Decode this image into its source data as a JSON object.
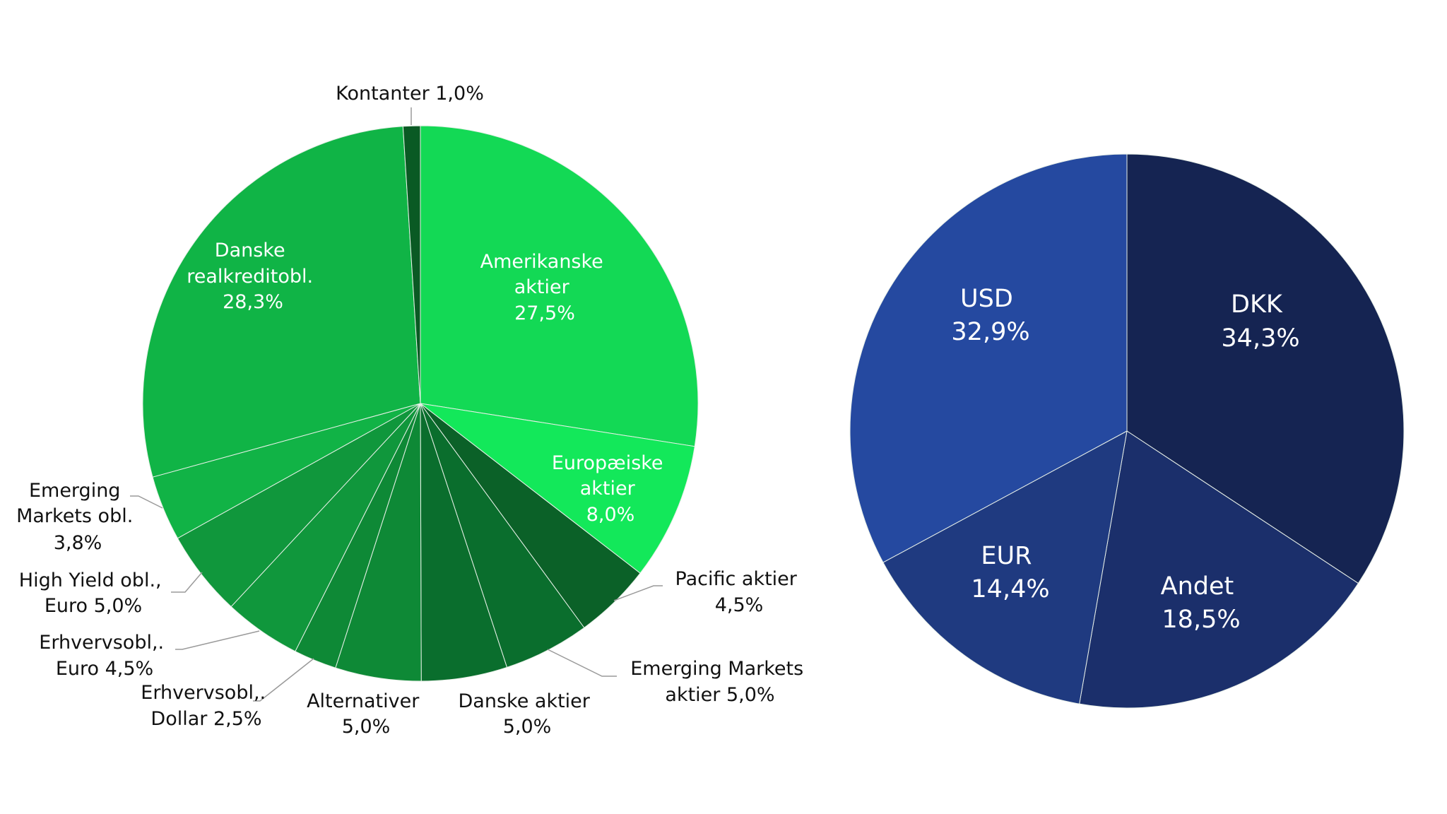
{
  "chart_data": [
    {
      "type": "pie",
      "title": "",
      "slices": [
        {
          "label": "Amerikanske aktier",
          "lines": [
            "Amerikanske",
            "aktier",
            "27,5%"
          ],
          "value": 27.5,
          "color": "#13d955"
        },
        {
          "label": "Europæiske aktier",
          "lines": [
            "Europæiske",
            "aktier",
            "8,0%"
          ],
          "value": 8.0,
          "color": "#13e85a"
        },
        {
          "label": "Pacific aktier",
          "lines": [
            "Pacific aktier",
            "4,5%"
          ],
          "value": 4.5,
          "color": "#0b6128"
        },
        {
          "label": "Emerging Markets aktier",
          "lines": [
            "Emerging Markets",
            "aktier 5,0%"
          ],
          "value": 5.0,
          "color": "#0a6e2d"
        },
        {
          "label": "Danske aktier",
          "lines": [
            "Danske aktier",
            "5,0%"
          ],
          "value": 5.0,
          "color": "#0a6e2d"
        },
        {
          "label": "Alternativer",
          "lines": [
            "Alternativer",
            "5,0%"
          ],
          "value": 5.0,
          "color": "#0e8936"
        },
        {
          "label": "Erhvervsobl,. Dollar",
          "lines": [
            "Erhvervsobl,.",
            "Dollar 2,5%"
          ],
          "value": 2.5,
          "color": "#0e8936"
        },
        {
          "label": "Erhvervsobl,. Euro",
          "lines": [
            "Erhvervsobl,.",
            "Euro 4,5%"
          ],
          "value": 4.5,
          "color": "#10973c"
        },
        {
          "label": "High Yield obl., Euro",
          "lines": [
            "High Yield obl.,",
            "Euro 5,0%"
          ],
          "value": 5.0,
          "color": "#10973c"
        },
        {
          "label": "Emerging Markets obl.",
          "lines": [
            "Emerging",
            "Markets obl.",
            "3,8%"
          ],
          "value": 3.8,
          "color": "#11b346"
        },
        {
          "label": "Danske realkreditobl.",
          "lines": [
            "Danske",
            "realkreditobl.",
            "28,3%"
          ],
          "value": 28.3,
          "color": "#10b446"
        },
        {
          "label": "Kontanter",
          "lines": [
            "Kontanter 1,0%"
          ],
          "value": 1.0,
          "color": "#0a5a24"
        }
      ]
    },
    {
      "type": "pie",
      "title": "",
      "slices": [
        {
          "label": "DKK",
          "lines": [
            "DKK",
            "34,3%"
          ],
          "value": 34.3,
          "color": "#152452"
        },
        {
          "label": "Andet",
          "lines": [
            "Andet",
            "18,5%"
          ],
          "value": 18.5,
          "color": "#1b2f6b"
        },
        {
          "label": "EUR",
          "lines": [
            "EUR",
            "14,4%"
          ],
          "value": 14.4,
          "color": "#1f3a80"
        },
        {
          "label": "USD",
          "lines": [
            "USD",
            "32,9%"
          ],
          "value": 32.9,
          "color": "#2549a0"
        }
      ]
    }
  ]
}
